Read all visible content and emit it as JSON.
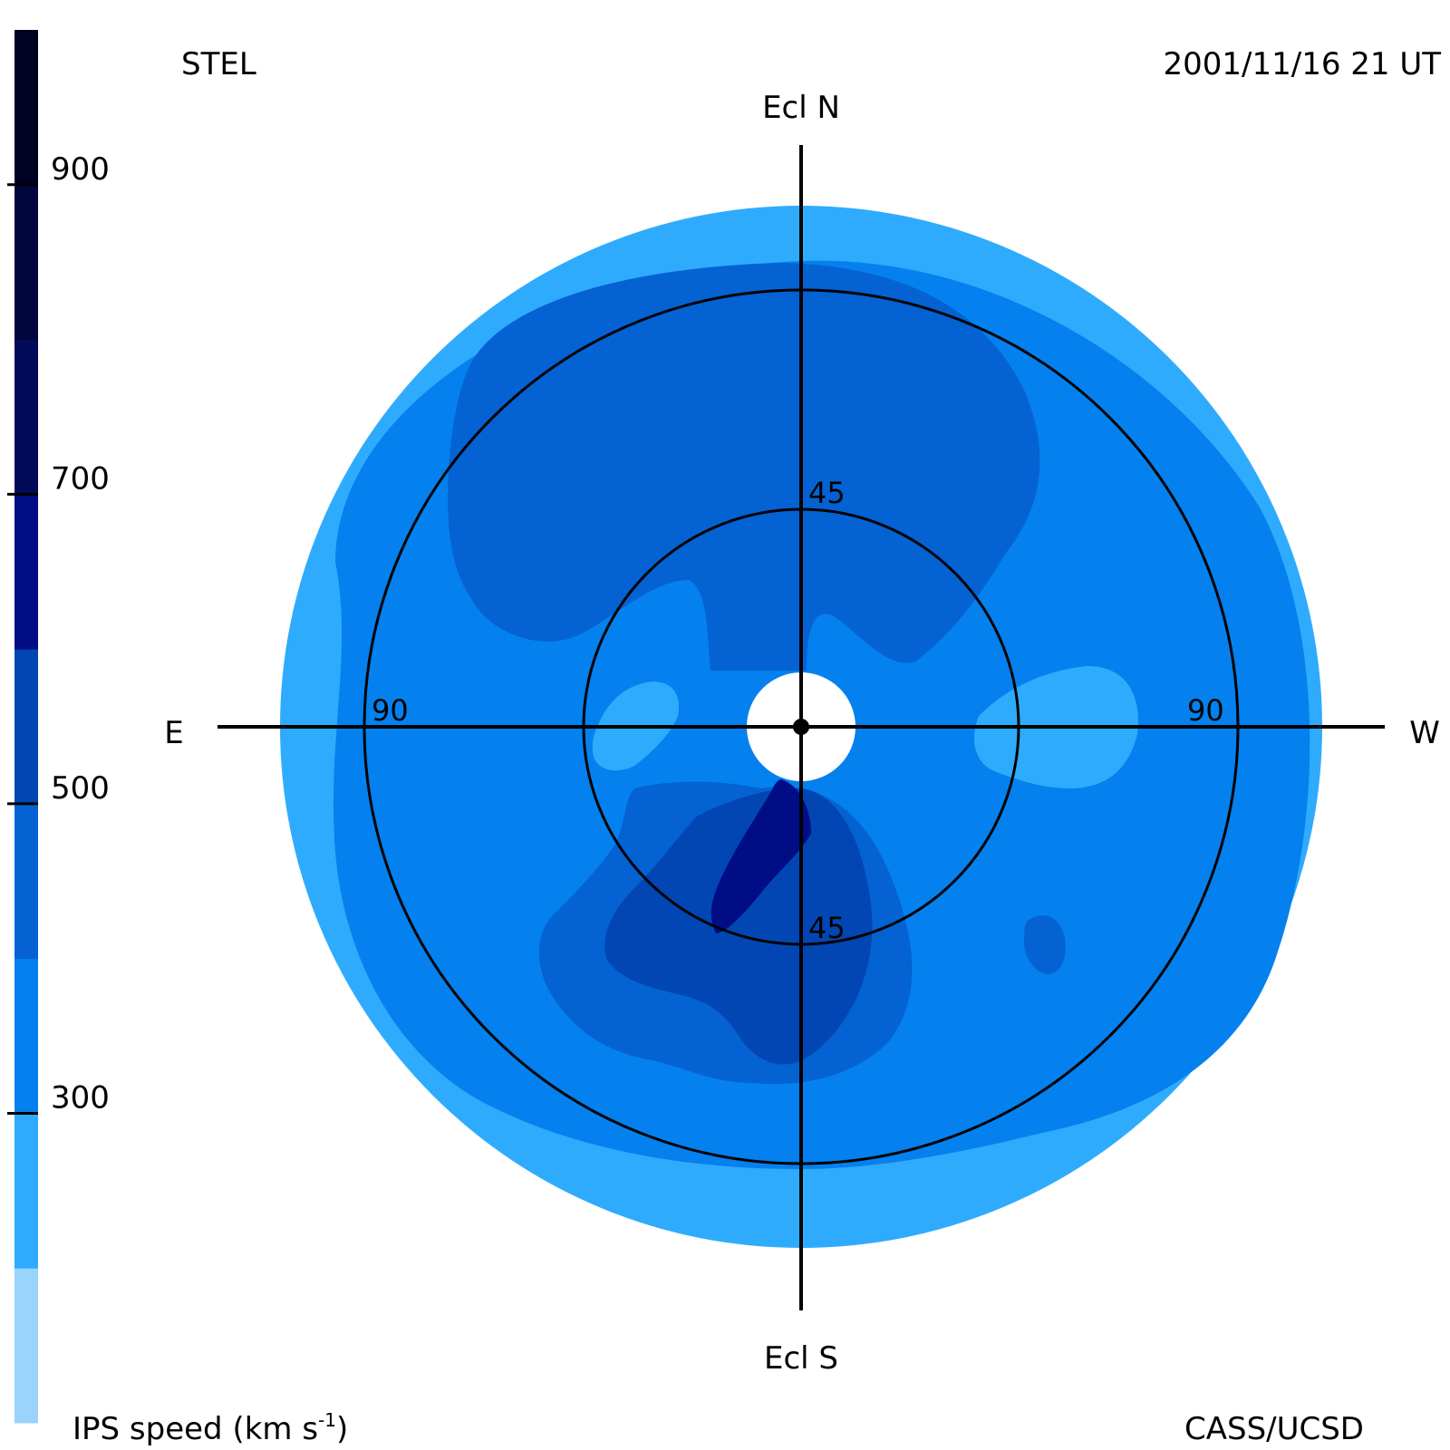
{
  "header": {
    "observatory": "STEL",
    "datetime": "2001/11/16 21 UT"
  },
  "footer": {
    "credit": "CASS/UCSD"
  },
  "colorbar": {
    "label_main": "IPS speed (km s",
    "label_sup": "-1",
    "label_close": ")",
    "ticks": [
      {
        "value": 300,
        "label": "300"
      },
      {
        "value": 500,
        "label": "500"
      },
      {
        "value": 700,
        "label": "700"
      },
      {
        "value": 900,
        "label": "900"
      }
    ],
    "min": 100,
    "max": 1000,
    "bins": [
      {
        "from": 100,
        "to": 200,
        "color": "#9ad3fc"
      },
      {
        "from": 200,
        "to": 300,
        "color": "#2fabfd"
      },
      {
        "from": 300,
        "to": 400,
        "color": "#0481ee"
      },
      {
        "from": 400,
        "to": 500,
        "color": "#0462d3"
      },
      {
        "from": 500,
        "to": 600,
        "color": "#0246b3"
      },
      {
        "from": 600,
        "to": 700,
        "color": "#010d85"
      },
      {
        "from": 700,
        "to": 800,
        "color": "#020b5a"
      },
      {
        "from": 800,
        "to": 900,
        "color": "#01063e"
      },
      {
        "from": 900,
        "to": 1000,
        "color": "#000222"
      }
    ]
  },
  "chart_data": {
    "type": "heatmap",
    "projection": "fisheye sky map centred on the Sun (elongation rings)",
    "directions": {
      "north": "Ecl N",
      "south": "Ecl S",
      "east": "E",
      "west": "W"
    },
    "elongation_rings": [
      {
        "deg": 45,
        "labels": [
          "45",
          "45"
        ]
      },
      {
        "deg": 90,
        "labels": [
          "90",
          "90"
        ]
      }
    ],
    "max_elongation_deg": 120,
    "regions_ips_speed_km_s": [
      {
        "region": "outer rim",
        "speed": 250
      },
      {
        "region": "most of map",
        "speed": 350
      },
      {
        "region": "northern lobe",
        "speed": 450
      },
      {
        "region": "southern lobe",
        "speed": 450
      },
      {
        "region": "south near Sun",
        "speed": 550
      },
      {
        "region": "south core near Sun",
        "speed": 650
      },
      {
        "region": "east and west patches near Sun",
        "speed": 250
      }
    ],
    "grid": true,
    "legend": "left colorbar"
  }
}
